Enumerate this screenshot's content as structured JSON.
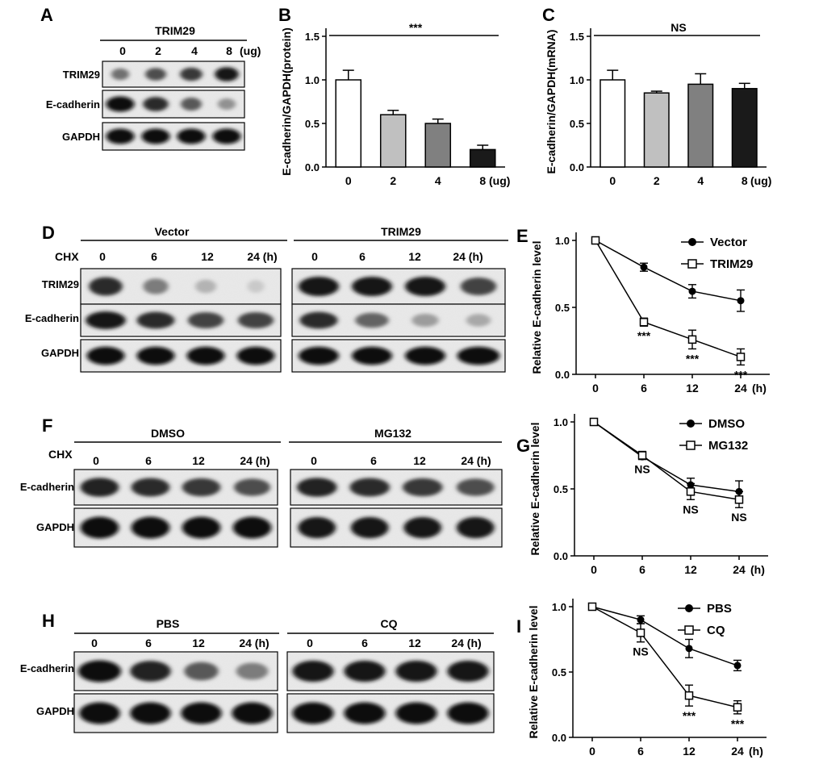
{
  "panel_labels": [
    "A",
    "B",
    "C",
    "D",
    "E",
    "F",
    "G",
    "H",
    "I"
  ],
  "panel_a": {
    "title": "TRIM29",
    "doses": [
      "0",
      "2",
      "4",
      "8"
    ],
    "unit": "(ug)",
    "rows": [
      "TRIM29",
      "E-cadherin",
      "GAPDH"
    ]
  },
  "panel_d": {
    "cond_left": "Vector",
    "cond_right": "TRIM29",
    "chx": "CHX",
    "times": [
      "0",
      "6",
      "12",
      "24 (h)"
    ],
    "rows": [
      "TRIM29",
      "E-cadherin",
      "GAPDH"
    ]
  },
  "panel_f": {
    "cond_left": "DMSO",
    "cond_right": "MG132",
    "chx": "CHX",
    "times": [
      "0",
      "6",
      "12",
      "24 (h)"
    ],
    "rows": [
      "E-cadherin",
      "GAPDH"
    ]
  },
  "panel_h": {
    "cond_left": "PBS",
    "cond_right": "CQ",
    "times": [
      "0",
      "6",
      "12",
      "24 (h)"
    ],
    "rows": [
      "E-cadherin",
      "GAPDH"
    ]
  },
  "chart_data": [
    {
      "panel": "B",
      "type": "bar",
      "categories": [
        "0",
        "2",
        "4",
        "8"
      ],
      "x_unit": "(ug)",
      "values": [
        1.0,
        0.6,
        0.5,
        0.2
      ],
      "errors": [
        0.11,
        0.05,
        0.05,
        0.05
      ],
      "colors": [
        "#ffffff",
        "#c0c0c0",
        "#808080",
        "#1a1a1a"
      ],
      "ylabel": "E-cadherin/GAPDH(protein)",
      "yticks": [
        "0.0",
        "0.5",
        "1.0",
        "1.5"
      ],
      "ylim": [
        0,
        1.5
      ],
      "significance": "***"
    },
    {
      "panel": "C",
      "type": "bar",
      "categories": [
        "0",
        "2",
        "4",
        "8"
      ],
      "x_unit": "(ug)",
      "values": [
        1.0,
        0.85,
        0.95,
        0.9
      ],
      "errors": [
        0.11,
        0.02,
        0.12,
        0.06
      ],
      "colors": [
        "#ffffff",
        "#c0c0c0",
        "#808080",
        "#1a1a1a"
      ],
      "ylabel": "E-cadherin/GAPDH(mRNA)",
      "yticks": [
        "0.0",
        "0.5",
        "1.0",
        "1.5"
      ],
      "ylim": [
        0,
        1.5
      ],
      "significance": "NS"
    },
    {
      "panel": "E",
      "type": "line",
      "x": [
        0,
        6,
        12,
        24
      ],
      "xticks": [
        "0",
        "6",
        "12",
        "24"
      ],
      "x_unit": "(h)",
      "ylabel": "Relative E-cadherin level",
      "yticks": [
        "0.0",
        "0.5",
        "1.0"
      ],
      "ylim": [
        0,
        1.0
      ],
      "legend_position": "top-right",
      "series": [
        {
          "name": "Vector",
          "marker": "circle",
          "values": [
            1.0,
            0.8,
            0.62,
            0.55
          ],
          "errors": [
            0,
            0.03,
            0.05,
            0.08
          ]
        },
        {
          "name": "TRIM29",
          "marker": "square",
          "values": [
            1.0,
            0.39,
            0.26,
            0.13
          ],
          "errors": [
            0,
            0.03,
            0.07,
            0.06
          ]
        }
      ],
      "annotations": [
        "***",
        "***",
        "***"
      ]
    },
    {
      "panel": "G",
      "type": "line",
      "x": [
        0,
        6,
        12,
        24
      ],
      "xticks": [
        "0",
        "6",
        "12",
        "24"
      ],
      "x_unit": "(h)",
      "ylabel": "Relative E-cadherin level",
      "yticks": [
        "0.0",
        "0.5",
        "1.0"
      ],
      "ylim": [
        0,
        1.0
      ],
      "legend_position": "top-right",
      "series": [
        {
          "name": "DMSO",
          "marker": "circle",
          "values": [
            1.0,
            0.74,
            0.53,
            0.48
          ],
          "errors": [
            0,
            0.02,
            0.05,
            0.08
          ]
        },
        {
          "name": "MG132",
          "marker": "square",
          "values": [
            1.0,
            0.75,
            0.48,
            0.42
          ],
          "errors": [
            0,
            0.03,
            0.06,
            0.06
          ]
        }
      ],
      "annotations": [
        "NS",
        "NS",
        "NS"
      ]
    },
    {
      "panel": "I",
      "type": "line",
      "x": [
        0,
        6,
        12,
        24
      ],
      "xticks": [
        "0",
        "6",
        "12",
        "24"
      ],
      "x_unit": "(h)",
      "ylabel": "Relative E-cadherin level",
      "yticks": [
        "0.0",
        "0.5",
        "1.0"
      ],
      "ylim": [
        0,
        1.0
      ],
      "legend_position": "top-right",
      "series": [
        {
          "name": "PBS",
          "marker": "circle",
          "values": [
            1.0,
            0.9,
            0.68,
            0.55
          ],
          "errors": [
            0,
            0.03,
            0.07,
            0.04
          ]
        },
        {
          "name": "CQ",
          "marker": "square",
          "values": [
            1.0,
            0.8,
            0.32,
            0.23
          ],
          "errors": [
            0,
            0.07,
            0.08,
            0.05
          ]
        }
      ],
      "annotations": [
        "NS",
        "***",
        "***"
      ]
    }
  ]
}
